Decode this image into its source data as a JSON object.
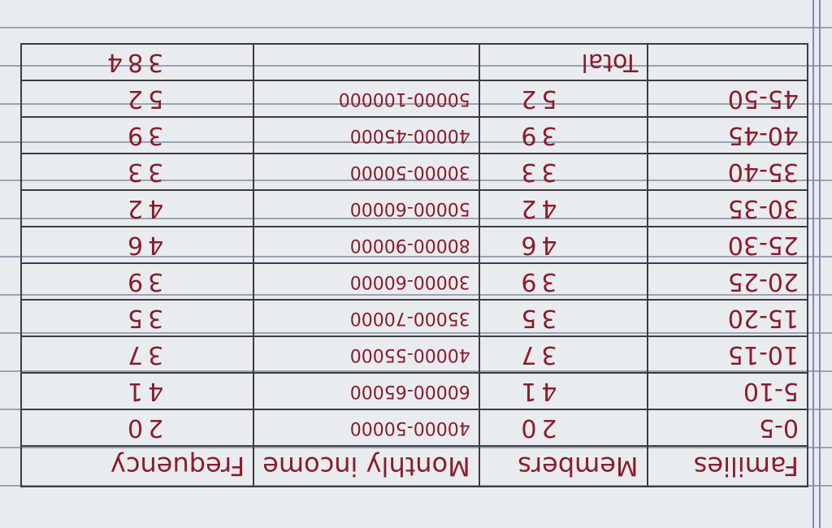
{
  "table": {
    "header": [
      "Families",
      "Members",
      "Monthly income",
      "Frequency"
    ],
    "rows": [
      [
        "0-5",
        20,
        "40000-50000",
        20
      ],
      [
        "5-10",
        41,
        "60000-65000",
        41
      ],
      [
        "10-15",
        37,
        "40000-55000",
        37
      ],
      [
        "15-20",
        35,
        "35000-70000",
        35
      ],
      [
        "20-25",
        39,
        "30000-60000",
        39
      ],
      [
        "25-30",
        46,
        "80000-90000",
        46
      ],
      [
        "30-35",
        42,
        "50000-60000",
        42
      ],
      [
        "35-40",
        33,
        "30000-50000",
        33
      ],
      [
        "40-45",
        39,
        "40000-45000",
        39
      ],
      [
        "45-50",
        52,
        "50000-100000",
        52
      ]
    ],
    "total": {
      "label": "Total",
      "value": 384
    }
  }
}
